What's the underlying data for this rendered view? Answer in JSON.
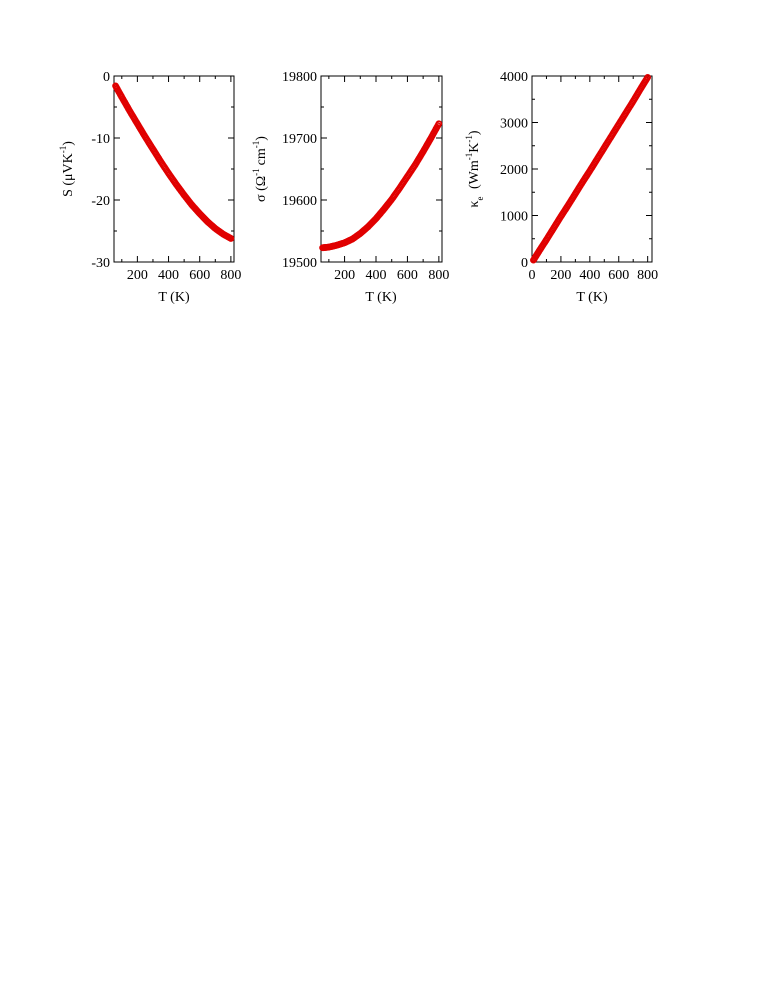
{
  "chart_data": [
    {
      "type": "scatter",
      "xlabel": "T (K)",
      "ylabel": "S (μVK⁻¹)",
      "ylabel_parts": {
        "main": "S (μVK",
        "sup": "-1",
        "close": ")"
      },
      "xlim": [
        50,
        820
      ],
      "ylim": [
        -30,
        0
      ],
      "xticks": [
        200,
        400,
        600,
        800
      ],
      "yticks": [
        -30,
        -20,
        -10,
        0
      ],
      "marker_color": "#e00000",
      "series": [
        {
          "x": [
            60,
            100,
            150,
            200,
            250,
            300,
            350,
            400,
            450,
            500,
            550,
            600,
            650,
            700,
            750,
            800
          ],
          "y": [
            -1.6,
            -3.4,
            -5.6,
            -7.7,
            -9.8,
            -11.8,
            -13.8,
            -15.7,
            -17.5,
            -19.2,
            -20.8,
            -22.2,
            -23.5,
            -24.6,
            -25.5,
            -26.2
          ]
        }
      ]
    },
    {
      "type": "scatter",
      "xlabel": "T (K)",
      "ylabel": "σ (Ω⁻¹ cm⁻¹)",
      "ylabel_parts": {
        "main": "σ (Ω",
        "sup": "-1",
        "mid": "cm",
        "sup2": "-1",
        "close": ")"
      },
      "xlim": [
        50,
        820
      ],
      "ylim": [
        19500,
        19800
      ],
      "xticks": [
        200,
        400,
        600,
        800
      ],
      "yticks": [
        19500,
        19600,
        19700,
        19800
      ],
      "marker_color": "#e00000",
      "series": [
        {
          "x": [
            60,
            100,
            150,
            200,
            250,
            300,
            350,
            400,
            450,
            500,
            550,
            600,
            650,
            700,
            750,
            800
          ],
          "y": [
            19523,
            19524,
            19527,
            19531,
            19537,
            19546,
            19557,
            19570,
            19585,
            19601,
            19619,
            19638,
            19657,
            19678,
            19700,
            19723
          ]
        }
      ]
    },
    {
      "type": "scatter",
      "xlabel": "T (K)",
      "ylabel": "κe (Wm⁻¹K⁻¹)",
      "ylabel_parts": {
        "main": "κ",
        "sub": "e",
        "mid": " (Wm",
        "sup": "-1",
        "mid2": "K",
        "sup2": "-1",
        "close": ")"
      },
      "xlim": [
        0,
        830
      ],
      "ylim": [
        0,
        4000
      ],
      "xticks": [
        0,
        200,
        400,
        600,
        800
      ],
      "yticks": [
        0,
        1000,
        2000,
        3000,
        4000
      ],
      "marker_color": "#e00000",
      "series": [
        {
          "x": [
            10,
            50,
            100,
            150,
            200,
            250,
            300,
            350,
            400,
            450,
            500,
            550,
            600,
            650,
            700,
            750,
            800
          ],
          "y": [
            40,
            240,
            480,
            730,
            980,
            1220,
            1470,
            1720,
            1960,
            2210,
            2460,
            2710,
            2960,
            3210,
            3460,
            3720,
            3970
          ]
        }
      ]
    }
  ]
}
